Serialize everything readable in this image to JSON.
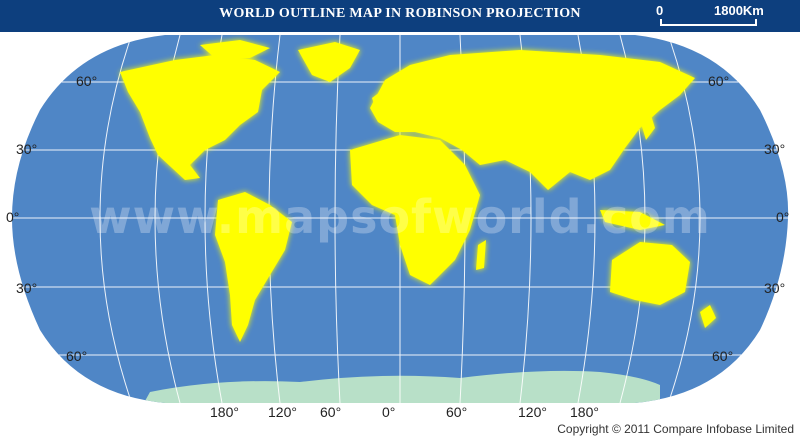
{
  "title": "WORLD OUTLINE MAP IN ROBINSON PROJECTION",
  "scale": {
    "zero": "0",
    "distance": "1800Km"
  },
  "latitude_labels": {
    "n60": "60°",
    "n30": "30°",
    "eq": "0°",
    "s30": "30°",
    "s60": "60°"
  },
  "longitude_labels": {
    "w180": "180°",
    "w120": "120°",
    "w60": "60°",
    "zero": "0°",
    "e60": "60°",
    "e120": "120°",
    "e180": "180°"
  },
  "watermark": "www.mapsofworld.com",
  "copyright": "Copyright © 2011 Compare Infobase Limited",
  "colors": {
    "ocean": "#4f86c6",
    "land": "#ffff00",
    "antarctica": "#b8e0c8",
    "header": "#0d3f7e",
    "graticule": "#ffffff"
  },
  "icons": {
    "scale_bar": "scale-bar-icon"
  }
}
